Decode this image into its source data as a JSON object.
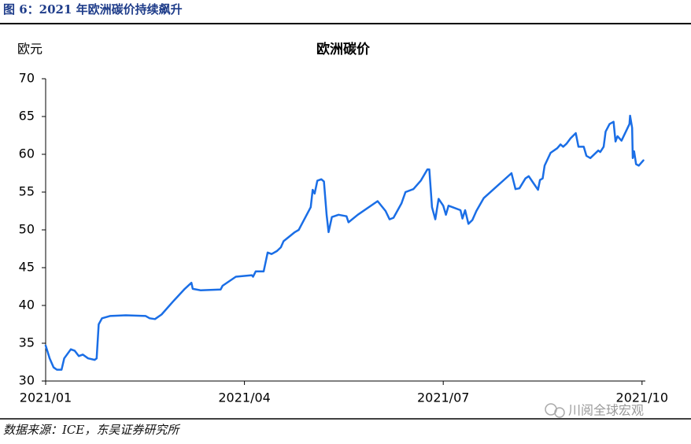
{
  "header": "图 6：2021 年欧洲碳价持续飙升",
  "footer": "数据来源：ICE，东吴证券研究所",
  "watermark": "川阅全球宏观",
  "chart_data": {
    "type": "line",
    "title": "欧洲碳价",
    "y_label": "欧元",
    "color": "#1a6ee6",
    "x": [
      0,
      0.06,
      0.12,
      0.17,
      0.24,
      0.28,
      0.38,
      0.44,
      0.5,
      0.56,
      0.64,
      0.74,
      0.77,
      0.8,
      0.85,
      0.97,
      1.21,
      1.51,
      1.57,
      1.65,
      1.75,
      1.92,
      2.1,
      2.2,
      2.22,
      2.34,
      2.64,
      2.67,
      2.87,
      3.11,
      3.13,
      3.17,
      3.29,
      3.35,
      3.41,
      3.49,
      3.55,
      3.59,
      3.76,
      3.82,
      4.0,
      4.03,
      4.06,
      4.1,
      4.16,
      4.2,
      4.24,
      4.27,
      4.32,
      4.42,
      4.54,
      4.57,
      4.71,
      5.01,
      5.13,
      5.19,
      5.25,
      5.37,
      5.43,
      5.55,
      5.66,
      5.76,
      5.79,
      5.83,
      5.88,
      5.93,
      6.0,
      6.04,
      6.08,
      6.14,
      6.26,
      6.29,
      6.33,
      6.38,
      6.44,
      6.5,
      6.61,
      7.03,
      7.09,
      7.15,
      7.24,
      7.29,
      7.36,
      7.43,
      7.46,
      7.5,
      7.53,
      7.62,
      7.72,
      7.77,
      7.81,
      7.86,
      7.92,
      8.0,
      8.04,
      8.12,
      8.16,
      8.22,
      8.34,
      8.37,
      8.42,
      8.45,
      8.51,
      8.57,
      8.6,
      8.63,
      8.69,
      8.81,
      8.82,
      8.85,
      8.86,
      8.88,
      8.91,
      8.95,
      9.02
    ],
    "values": [
      34.7,
      33,
      31.8,
      31.5,
      31.5,
      33,
      34.2,
      34,
      33.3,
      33.5,
      33,
      32.8,
      33,
      37.5,
      38.3,
      38.6,
      38.7,
      38.6,
      38.3,
      38.2,
      38.8,
      40.5,
      42.2,
      43,
      42.2,
      42,
      42.1,
      42.6,
      43.8,
      44,
      43.8,
      44.5,
      44.5,
      47,
      46.8,
      47.2,
      47.7,
      48.5,
      49.7,
      50,
      53,
      55.3,
      54.8,
      56.5,
      56.7,
      56.4,
      52,
      49.7,
      51.7,
      52,
      51.8,
      51,
      52,
      53.8,
      52.5,
      51.4,
      51.6,
      53.5,
      55,
      55.4,
      56.5,
      58,
      58,
      53,
      51.4,
      54.1,
      53.2,
      52,
      53.2,
      53,
      52.6,
      51.5,
      52.6,
      50.8,
      51.3,
      52.5,
      54.2,
      57.5,
      55.4,
      55.5,
      56.8,
      57.1,
      56.2,
      55.3,
      56.6,
      56.8,
      58.5,
      60.2,
      60.8,
      61.3,
      61,
      61.4,
      62.1,
      62.8,
      61,
      61,
      59.8,
      59.5,
      60.5,
      60.3,
      61,
      63,
      64,
      64.3,
      61.7,
      62.4,
      61.8,
      64,
      65.1,
      63.5,
      59.5,
      60.4,
      58.7,
      58.5,
      59.2
    ],
    "xlim": [
      0,
      9.05
    ],
    "xticks": [
      {
        "value": 0,
        "label": "2021/01"
      },
      {
        "value": 3,
        "label": "2021/04"
      },
      {
        "value": 6,
        "label": "2021/07"
      },
      {
        "value": 9,
        "label": "2021/10"
      }
    ],
    "ylim": [
      30,
      70
    ],
    "yticks": [
      30,
      35,
      40,
      45,
      50,
      55,
      60,
      65,
      70
    ]
  }
}
